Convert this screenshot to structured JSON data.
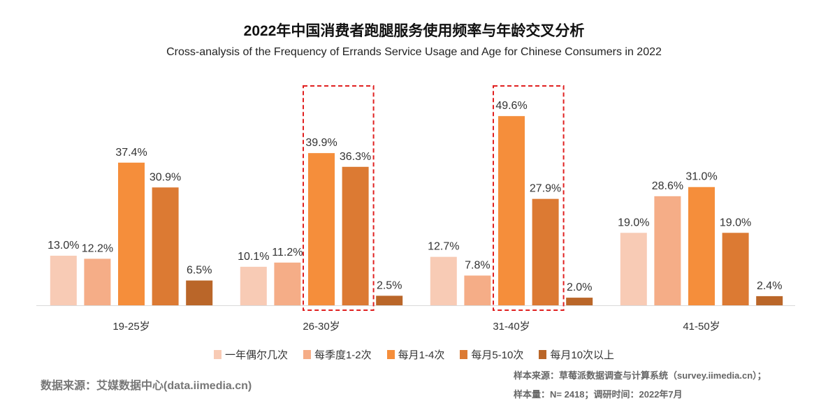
{
  "chart_data": {
    "type": "bar",
    "title": "2022年中国消费者跑腿服务使用频率与年龄交叉分析",
    "subtitle": "Cross-analysis of the Frequency of Errands Service Usage and Age for Chinese Consumers in 2022",
    "categories": [
      "19-25岁",
      "26-30岁",
      "31-40岁",
      "41-50岁"
    ],
    "series": [
      {
        "name": "一年偶尔几次",
        "color": "#F8CBB5",
        "values": [
          13.0,
          10.1,
          12.7,
          19.0
        ]
      },
      {
        "name": "每季度1-2次",
        "color": "#F5AD87",
        "values": [
          12.2,
          11.2,
          7.8,
          28.6
        ]
      },
      {
        "name": "每月1-4次",
        "color": "#F58E3B",
        "values": [
          37.4,
          39.9,
          49.6,
          31.0
        ]
      },
      {
        "name": "每月5-10次",
        "color": "#DC7A33",
        "values": [
          30.9,
          36.3,
          27.9,
          19.0
        ]
      },
      {
        "name": "每月10次以上",
        "color": "#BA6629",
        "values": [
          6.5,
          2.5,
          2.0,
          2.4
        ]
      }
    ],
    "value_format": "percent_1dp",
    "highlighted": [
      {
        "category": "26-30岁",
        "series": [
          "每月1-4次",
          "每月5-10次"
        ]
      },
      {
        "category": "31-40岁",
        "series": [
          "每月1-4次",
          "每月5-10次"
        ]
      }
    ],
    "highlight_color": "#E02020",
    "legend_position": "bottom",
    "grid": false
  },
  "footer": {
    "source": "数据来源：艾媒数据中心(data.iimedia.cn)",
    "sample_source": "样本来源：草莓派数据调查与计算系统（survey.iimedia.cn）；",
    "sample_size": "样本量：N= 2418；调研时间：2022年7月"
  }
}
